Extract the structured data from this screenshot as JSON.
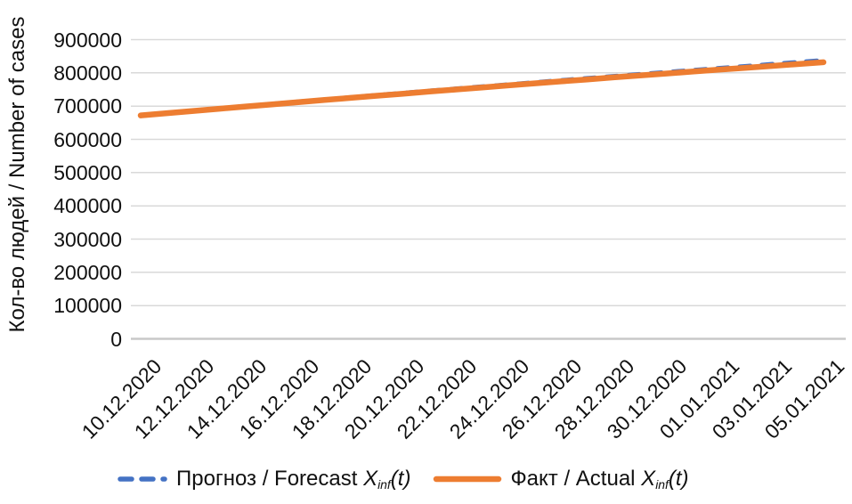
{
  "chart_data": {
    "type": "line",
    "title": "",
    "xlabel": "",
    "ylabel": "Кол-во людей / Number of cases",
    "ylim": [
      0,
      900000
    ],
    "yticks": [
      900000,
      800000,
      700000,
      600000,
      500000,
      400000,
      300000,
      200000,
      100000,
      0
    ],
    "grid": true,
    "legend_position": "bottom",
    "x": [
      "10.12.2020",
      "11.12.2020",
      "12.12.2020",
      "13.12.2020",
      "14.12.2020",
      "15.12.2020",
      "16.12.2020",
      "17.12.2020",
      "18.12.2020",
      "19.12.2020",
      "20.12.2020",
      "21.12.2020",
      "22.12.2020",
      "23.12.2020",
      "24.12.2020",
      "25.12.2020",
      "26.12.2020",
      "27.12.2020",
      "28.12.2020",
      "29.12.2020",
      "30.12.2020",
      "31.12.2020",
      "01.01.2021",
      "02.01.2021",
      "03.01.2021",
      "04.01.2021",
      "05.01.2021"
    ],
    "x_tick_labels": [
      "10.12.2020",
      "12.12.2020",
      "14.12.2020",
      "16.12.2020",
      "18.12.2020",
      "20.12.2020",
      "22.12.2020",
      "24.12.2020",
      "26.12.2020",
      "28.12.2020",
      "30.12.2020",
      "01.01.2021",
      "03.01.2021",
      "05.01.2021"
    ],
    "series": [
      {
        "name": "Прогноз / Forecast X_inf(t)",
        "color": "#4472C4",
        "style": "dashed",
        "values": [
          671200,
          678400,
          685400,
          692300,
          699100,
          705800,
          712400,
          719000,
          725600,
          732200,
          738700,
          745200,
          751600,
          758000,
          764300,
          770600,
          776900,
          783100,
          789200,
          795300,
          801300,
          807300,
          813200,
          819100,
          825200,
          831300,
          837300
        ]
      },
      {
        "name": "Факт / Actual X_inf(t)",
        "color": "#ED7D31",
        "style": "solid",
        "values": [
          672000,
          678800,
          685500,
          692200,
          698800,
          705400,
          711900,
          718400,
          724800,
          731200,
          737500,
          743800,
          750000,
          756200,
          762300,
          768400,
          774400,
          780400,
          786300,
          792200,
          798000,
          803800,
          809500,
          815200,
          820800,
          826400,
          831900
        ]
      }
    ]
  },
  "legend": {
    "items": [
      {
        "prefix": "Прогноз / Forecast ",
        "variable": "X",
        "subscript": "inf",
        "suffix": "(t)"
      },
      {
        "prefix": "Факт / Actual ",
        "variable": "X",
        "subscript": "inf",
        "suffix": "(t)"
      }
    ]
  },
  "colors": {
    "forecast": "#4472C4",
    "actual": "#ED7D31",
    "gridline": "#D9D9D9",
    "axis_line": "#C9C9C9",
    "text": "#111111"
  }
}
